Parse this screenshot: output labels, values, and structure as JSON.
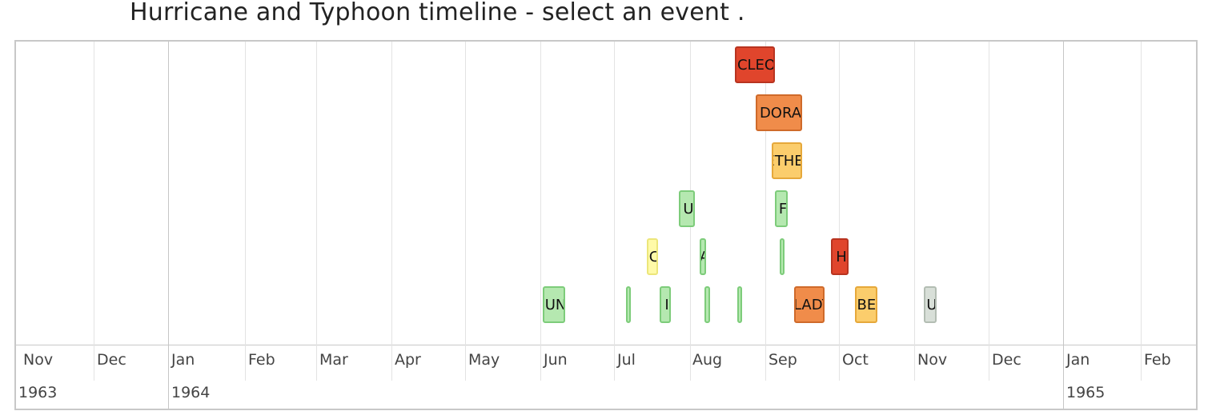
{
  "title": "Hurricane and Typhoon timeline - select an event .",
  "axis": {
    "months": [
      "Nov",
      "Dec",
      "Jan",
      "Feb",
      "Mar",
      "Apr",
      "May",
      "Jun",
      "Jul",
      "Aug",
      "Sep",
      "Oct",
      "Nov",
      "Dec",
      "Jan",
      "Feb"
    ],
    "years": [
      "1963",
      "1964",
      "1965"
    ]
  },
  "events": [
    {
      "label": "CLEO",
      "color": "red"
    },
    {
      "label": "DORA",
      "color": "orange"
    },
    {
      "label": "ETHEL",
      "color": "yellow"
    },
    {
      "label": "U",
      "color": "green"
    },
    {
      "label": "F",
      "color": "green"
    },
    {
      "label": "C",
      "color": "paleyellow"
    },
    {
      "label": "A",
      "color": "green"
    },
    {
      "label": "",
      "color": "green"
    },
    {
      "label": "H",
      "color": "red"
    },
    {
      "label": "UN",
      "color": "green"
    },
    {
      "label": "",
      "color": "green"
    },
    {
      "label": "I",
      "color": "green"
    },
    {
      "label": "",
      "color": "green"
    },
    {
      "label": "",
      "color": "green"
    },
    {
      "label": "GLADYS",
      "color": "orange"
    },
    {
      "label": "ISBELL",
      "color": "yellow"
    },
    {
      "label": "U",
      "color": "grey"
    }
  ],
  "colors": {
    "red": "#e0452c",
    "orange": "#f08c4a",
    "yellow": "#fbcd6c",
    "green": "#b5e8b0",
    "paleyellow": "#fffaa8",
    "grey": "#d8dfd8"
  }
}
